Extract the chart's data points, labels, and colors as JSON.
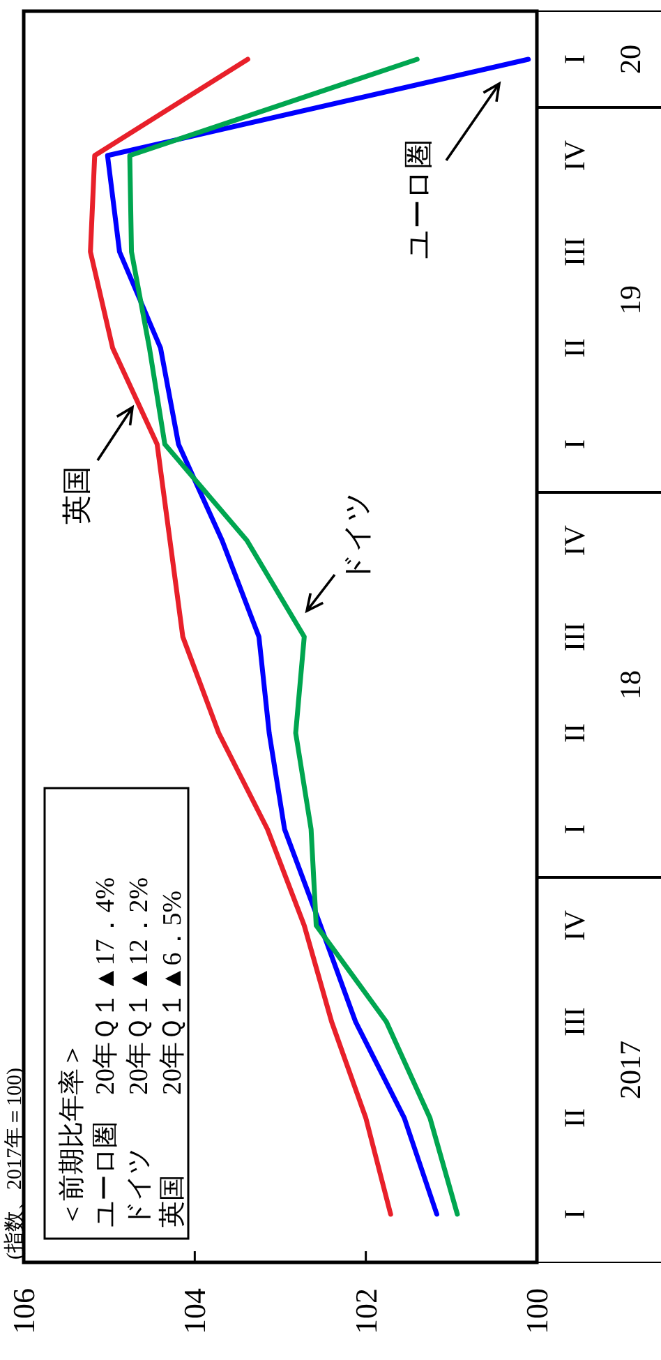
{
  "chart_data": {
    "type": "line",
    "orientation": "horizontal",
    "ylabel": "(指数、2017年＝100)",
    "categories": [
      "I",
      "IV",
      "III",
      "II",
      "I",
      "IV",
      "III",
      "II",
      "I",
      "IV",
      "III",
      "II",
      "I"
    ],
    "series": [
      {
        "name": "ユーロ圏",
        "color": "#0000ff",
        "values": [
          100.1,
          105.02,
          104.88,
          104.4,
          104.19,
          103.68,
          103.25,
          103.13,
          102.95,
          102.53,
          102.12,
          101.55,
          101.17
        ]
      },
      {
        "name": "ドイツ",
        "color": "#00a650",
        "values": [
          101.4,
          104.76,
          104.74,
          104.53,
          104.35,
          103.39,
          102.72,
          102.82,
          102.64,
          102.58,
          101.76,
          101.25,
          100.93
        ]
      },
      {
        "name": "英国",
        "color": "#e8202a",
        "values": [
          103.38,
          105.17,
          105.22,
          104.96,
          104.44,
          104.29,
          104.14,
          103.72,
          103.15,
          102.72,
          102.4,
          102.0,
          101.71
        ]
      }
    ],
    "xlim": [
      106,
      100
    ],
    "xticks": [
      106,
      104,
      102,
      100
    ],
    "annotations": [
      "20",
      "19",
      "18",
      "2017",
      "＜前期比年率＞",
      "ユーロ圏　20年Ｑ１▲17．4%",
      "ドイツ　　20年Ｑ１▲12．2%",
      "英国　　　20年Ｑ１▲6．5%"
    ]
  }
}
